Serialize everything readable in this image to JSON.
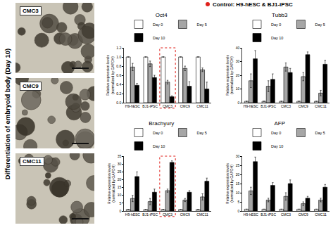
{
  "header": {
    "legend_text": "Control: H9-hESC & BJ1-iPSC"
  },
  "side_label": "Differentiation of embryoid body (Day 10)",
  "images": [
    {
      "label": "CMC3"
    },
    {
      "label": "CMC9"
    },
    {
      "label": "CMC11"
    }
  ],
  "chart_data": [
    {
      "type": "bar",
      "title": "Oct4",
      "y_label": [
        "Relative expression levels",
        "(normalized by GAPDH)"
      ],
      "categories": [
        "H9-hESC",
        "BJ1-iPSC",
        "CMC3",
        "CMC9",
        "CMC11"
      ],
      "series": [
        {
          "name": "Day 0",
          "color": "#ffffff",
          "values": [
            1.0,
            1.0,
            1.0,
            1.0,
            1.0
          ],
          "errors": [
            0,
            0,
            0,
            0,
            0
          ]
        },
        {
          "name": "Day 5",
          "color": "#a6a6a6",
          "values": [
            0.78,
            0.85,
            0.45,
            0.75,
            0.72
          ],
          "errors": [
            0.08,
            0.06,
            0.04,
            0.05,
            0.04
          ]
        },
        {
          "name": "Day 10",
          "color": "#000000",
          "values": [
            0.38,
            0.55,
            0.13,
            0.36,
            0.3
          ],
          "errors": [
            0.04,
            0.05,
            0.02,
            0.1,
            0.15
          ]
        }
      ],
      "ylim": [
        0,
        1.2
      ],
      "yticks": [
        {
          "value": 0,
          "label": "0.0"
        },
        0.2,
        0.4,
        0.6,
        0.8,
        {
          "value": 1,
          "label": "1.0"
        },
        1.2
      ]
    },
    {
      "type": "bar",
      "title": "Tubb3",
      "y_label": [
        "Relative expression levels",
        "(normalized by GAPDH)"
      ],
      "categories": [
        "H9-hESC",
        "BJ1-iPSC",
        "CMC3",
        "CMC9",
        "CMC11"
      ],
      "series": [
        {
          "name": "Day 0",
          "color": "#ffffff",
          "values": [
            1,
            1,
            1,
            1,
            1
          ],
          "errors": [
            0,
            0,
            0,
            0,
            0
          ]
        },
        {
          "name": "Day 5",
          "color": "#a6a6a6",
          "values": [
            16,
            12,
            26,
            19,
            7
          ],
          "errors": [
            5,
            4,
            3,
            3,
            2
          ]
        },
        {
          "name": "Day 10",
          "color": "#000000",
          "values": [
            32,
            17,
            22,
            35,
            28
          ],
          "errors": [
            6,
            4,
            3,
            2,
            3
          ]
        }
      ],
      "ylim": [
        0,
        40
      ],
      "yticks": [
        0,
        10,
        20,
        30,
        40
      ]
    },
    {
      "type": "bar",
      "title": "Brachyury",
      "y_label": [
        "Relative expression levels",
        "(normalized by GAPDH)"
      ],
      "categories": [
        "H9-hESC",
        "BJ1-iPSC",
        "CMC3",
        "CMC9",
        "CMC11"
      ],
      "series": [
        {
          "name": "Day 0",
          "color": "#ffffff",
          "values": [
            1,
            1,
            1,
            1,
            1
          ],
          "errors": [
            0,
            0,
            0,
            0,
            0
          ]
        },
        {
          "name": "Day 5",
          "color": "#a6a6a6",
          "values": [
            8,
            6,
            13,
            7,
            9
          ],
          "errors": [
            2,
            2,
            1,
            1,
            2
          ]
        },
        {
          "name": "Day 10",
          "color": "#000000",
          "values": [
            22,
            12,
            31,
            12,
            19
          ],
          "errors": [
            3,
            2,
            1,
            1,
            2
          ]
        }
      ],
      "ylim": [
        0,
        35
      ],
      "yticks": [
        0,
        5,
        10,
        15,
        20,
        25,
        30,
        35
      ]
    },
    {
      "type": "bar",
      "title": "AFP",
      "y_label": [
        "Relative expression levels",
        "(normalized by GAPDH)"
      ],
      "categories": [
        "H9-hESC",
        "BJ1-iPSC",
        "CMC3",
        "CMC9",
        "CMC11"
      ],
      "series": [
        {
          "name": "Day 0",
          "color": "#ffffff",
          "values": [
            1,
            1,
            1,
            1,
            1
          ],
          "errors": [
            0,
            0,
            0,
            0,
            0
          ]
        },
        {
          "name": "Day 5",
          "color": "#a6a6a6",
          "values": [
            11,
            6,
            8,
            4,
            6
          ],
          "errors": [
            2,
            1,
            2,
            1,
            1
          ]
        },
        {
          "name": "Day 10",
          "color": "#000000",
          "values": [
            27,
            14,
            15,
            7,
            13
          ],
          "errors": [
            2.5,
            1.5,
            2,
            1,
            1.5
          ]
        }
      ],
      "ylim": [
        0,
        30
      ],
      "yticks": [
        0,
        5,
        10,
        15,
        20,
        25,
        30
      ]
    }
  ]
}
